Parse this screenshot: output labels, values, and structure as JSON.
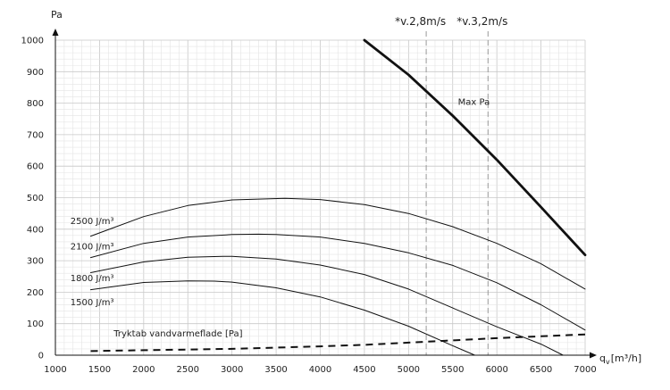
{
  "chart_data": {
    "type": "line",
    "ylabel": "Pa",
    "xlabel": "q",
    "xlabel_sub": "v",
    "xlabel_unit": "[m³/h]",
    "xlim": [
      1000,
      7000
    ],
    "ylim": [
      0,
      1000
    ],
    "xticks": [
      1000,
      1500,
      2000,
      2500,
      3000,
      3500,
      4000,
      4500,
      5000,
      5500,
      6000,
      6500,
      7000
    ],
    "yticks": [
      0,
      100,
      200,
      300,
      400,
      500,
      600,
      700,
      800,
      900,
      1000
    ],
    "grid": true,
    "vlines": [
      {
        "x": 5200,
        "label": "*v.2,8m/s"
      },
      {
        "x": 5900,
        "label": "*v.3,2m/s"
      }
    ],
    "series": [
      {
        "name": "Max Pa",
        "style": "thick",
        "points": [
          [
            4500,
            1000
          ],
          [
            5000,
            890
          ],
          [
            5500,
            760
          ],
          [
            6000,
            620
          ],
          [
            6500,
            470
          ],
          [
            7000,
            318
          ]
        ]
      },
      {
        "name": "2500 J/m³",
        "style": "thin",
        "points": [
          [
            1400,
            378
          ],
          [
            2000,
            440
          ],
          [
            2500,
            475
          ],
          [
            3000,
            493
          ],
          [
            3600,
            498
          ],
          [
            4000,
            494
          ],
          [
            4500,
            478
          ],
          [
            5000,
            450
          ],
          [
            5500,
            408
          ],
          [
            6000,
            355
          ],
          [
            6500,
            290
          ],
          [
            7000,
            210
          ]
        ]
      },
      {
        "name": "2100 J/m³",
        "style": "thin",
        "points": [
          [
            1400,
            310
          ],
          [
            2000,
            355
          ],
          [
            2500,
            375
          ],
          [
            3000,
            383
          ],
          [
            3300,
            384
          ],
          [
            3500,
            383
          ],
          [
            4000,
            375
          ],
          [
            4500,
            355
          ],
          [
            5000,
            325
          ],
          [
            5500,
            285
          ],
          [
            6000,
            230
          ],
          [
            6500,
            160
          ],
          [
            7000,
            80
          ]
        ]
      },
      {
        "name": "1800 J/m³",
        "style": "thin",
        "points": [
          [
            1400,
            262
          ],
          [
            2000,
            296
          ],
          [
            2500,
            311
          ],
          [
            2900,
            314
          ],
          [
            3000,
            314
          ],
          [
            3500,
            305
          ],
          [
            4000,
            286
          ],
          [
            4500,
            256
          ],
          [
            5000,
            210
          ],
          [
            5500,
            150
          ],
          [
            6000,
            90
          ],
          [
            6500,
            35
          ],
          [
            6750,
            0
          ]
        ]
      },
      {
        "name": "1500 J/m³",
        "style": "thin",
        "points": [
          [
            1400,
            208
          ],
          [
            2000,
            231
          ],
          [
            2500,
            236
          ],
          [
            2800,
            235
          ],
          [
            3000,
            232
          ],
          [
            3500,
            214
          ],
          [
            4000,
            185
          ],
          [
            4500,
            143
          ],
          [
            5000,
            92
          ],
          [
            5500,
            30
          ],
          [
            5750,
            0
          ]
        ]
      },
      {
        "name": "Tryktab vandvarmeflade [Pa]",
        "style": "dashed",
        "points": [
          [
            1400,
            13
          ],
          [
            2000,
            16
          ],
          [
            3000,
            20
          ],
          [
            4000,
            28
          ],
          [
            4500,
            33
          ],
          [
            5000,
            40
          ],
          [
            5500,
            47
          ],
          [
            6000,
            54
          ],
          [
            6500,
            60
          ],
          [
            7000,
            66
          ]
        ]
      }
    ],
    "annotations": [
      {
        "text": "2500 J/m³",
        "x": 1170,
        "y": 427
      },
      {
        "text": "2100 J/m³",
        "x": 1170,
        "y": 345
      },
      {
        "text": "1800 J/m³",
        "x": 1170,
        "y": 245
      },
      {
        "text": "1500 J/m³",
        "x": 1170,
        "y": 168
      },
      {
        "text": "Max Pa",
        "x": 5560,
        "y": 805
      },
      {
        "text": "Tryktab vandvarmeflade [Pa]",
        "x": 1660,
        "y": 70
      }
    ]
  }
}
